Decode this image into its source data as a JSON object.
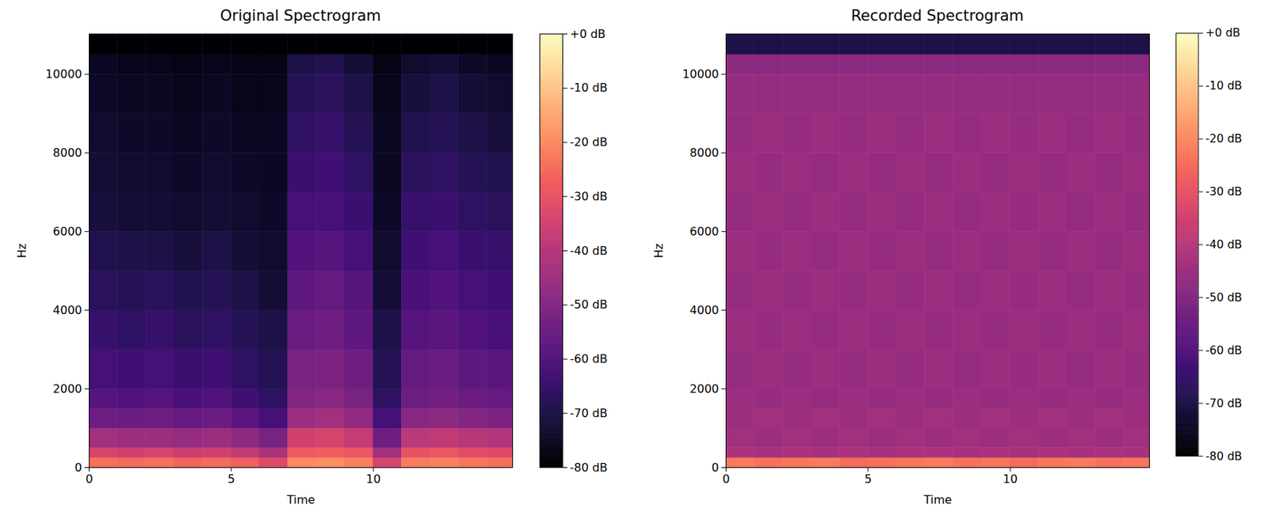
{
  "chart_data": [
    {
      "type": "heatmap",
      "title": "Original Spectrogram",
      "x_label": "Time",
      "y_label": "Hz",
      "color": "magma",
      "xlim": [
        0,
        14.9
      ],
      "ylim": [
        0,
        11025
      ],
      "xticks": [
        0,
        5,
        10
      ],
      "yticks": [
        0,
        2000,
        4000,
        6000,
        8000,
        10000
      ],
      "x_edges": [
        0,
        1,
        2,
        3,
        4,
        5,
        6,
        7,
        8,
        9,
        10,
        11,
        12,
        13,
        14,
        14.9
      ],
      "y_edges": [
        0,
        250,
        500,
        1000,
        1500,
        2000,
        3000,
        4000,
        5000,
        6000,
        7000,
        8000,
        9000,
        10000,
        10500,
        11025
      ],
      "cells": [
        [
          -24,
          -25,
          -24,
          -26,
          -25,
          -27,
          -32,
          -20,
          -19,
          -21,
          -34,
          -22,
          -21,
          -23,
          -24
        ],
        [
          -34,
          -35,
          -34,
          -36,
          -35,
          -38,
          -42,
          -28,
          -27,
          -29,
          -44,
          -30,
          -29,
          -31,
          -32
        ],
        [
          -44,
          -45,
          -45,
          -46,
          -45,
          -48,
          -52,
          -35,
          -34,
          -37,
          -54,
          -39,
          -38,
          -40,
          -41
        ],
        [
          -54,
          -55,
          -54,
          -56,
          -55,
          -58,
          -62,
          -45,
          -44,
          -47,
          -62,
          -49,
          -48,
          -50,
          -51
        ],
        [
          -59,
          -60,
          -59,
          -61,
          -60,
          -63,
          -66,
          -50,
          -49,
          -52,
          -66,
          -54,
          -53,
          -55,
          -56
        ],
        [
          -62,
          -63,
          -62,
          -64,
          -63,
          -66,
          -68,
          -52,
          -51,
          -54,
          -68,
          -56,
          -55,
          -57,
          -58
        ],
        [
          -65,
          -66,
          -65,
          -67,
          -66,
          -68,
          -70,
          -55,
          -54,
          -57,
          -70,
          -59,
          -58,
          -60,
          -61
        ],
        [
          -67,
          -68,
          -67,
          -69,
          -68,
          -70,
          -72,
          -57,
          -56,
          -59,
          -72,
          -61,
          -60,
          -62,
          -63
        ],
        [
          -69,
          -70,
          -70,
          -71,
          -70,
          -72,
          -73,
          -60,
          -59,
          -62,
          -73,
          -63,
          -62,
          -64,
          -65
        ],
        [
          -71,
          -72,
          -72,
          -73,
          -72,
          -73,
          -74,
          -62,
          -61,
          -64,
          -74,
          -65,
          -64,
          -66,
          -67
        ],
        [
          -72,
          -73,
          -73,
          -74,
          -73,
          -74,
          -75,
          -64,
          -63,
          -66,
          -75,
          -67,
          -66,
          -68,
          -69
        ],
        [
          -73,
          -74,
          -74,
          -75,
          -74,
          -75,
          -75,
          -66,
          -65,
          -68,
          -75,
          -69,
          -68,
          -70,
          -71
        ],
        [
          -74,
          -75,
          -75,
          -76,
          -75,
          -76,
          -76,
          -68,
          -67,
          -70,
          -76,
          -71,
          -70,
          -72,
          -73
        ],
        [
          -75,
          -76,
          -76,
          -77,
          -76,
          -77,
          -77,
          -70,
          -69,
          -72,
          -77,
          -73,
          -72,
          -74,
          -75
        ],
        [
          -80,
          -80,
          -80,
          -80,
          -80,
          -80,
          -80,
          -80,
          -80,
          -80,
          -80,
          -80,
          -80,
          -80,
          -80
        ]
      ],
      "colorbar": {
        "range": [
          -80,
          0
        ],
        "ticks": [
          {
            "value": 0,
            "label": "+0 dB"
          },
          {
            "value": -10,
            "label": "-10 dB"
          },
          {
            "value": -20,
            "label": "-20 dB"
          },
          {
            "value": -30,
            "label": "-30 dB"
          },
          {
            "value": -40,
            "label": "-40 dB"
          },
          {
            "value": -50,
            "label": "-50 dB"
          },
          {
            "value": -60,
            "label": "-60 dB"
          },
          {
            "value": -70,
            "label": "-70 dB"
          },
          {
            "value": -80,
            "label": "-80 dB"
          }
        ]
      }
    },
    {
      "type": "heatmap",
      "title": "Recorded Spectrogram",
      "x_label": "Time",
      "y_label": "Hz",
      "color": "magma",
      "xlim": [
        0,
        14.9
      ],
      "ylim": [
        0,
        11025
      ],
      "xticks": [
        0,
        5,
        10
      ],
      "yticks": [
        0,
        2000,
        4000,
        6000,
        8000,
        10000
      ],
      "x_edges": [
        0,
        1,
        2,
        3,
        4,
        5,
        6,
        7,
        8,
        9,
        10,
        11,
        12,
        13,
        14,
        14.9
      ],
      "y_edges": [
        0,
        250,
        500,
        1000,
        1500,
        2000,
        3000,
        4000,
        5000,
        6000,
        7000,
        8000,
        9000,
        10000,
        10500,
        11025
      ],
      "cells": [
        [
          -22,
          -24,
          -23,
          -22,
          -25,
          -24,
          -23,
          -22,
          -24,
          -23,
          -25,
          -23,
          -22,
          -24,
          -23
        ],
        [
          -42,
          -43,
          -42,
          -43,
          -42,
          -43,
          -42,
          -42,
          -43,
          -42,
          -43,
          -42,
          -43,
          -42,
          -43
        ],
        [
          -44,
          -45,
          -44,
          -45,
          -44,
          -45,
          -44,
          -45,
          -44,
          -45,
          -44,
          -45,
          -44,
          -45,
          -44
        ],
        [
          -45,
          -44,
          -45,
          -44,
          -45,
          -44,
          -45,
          -44,
          -45,
          -44,
          -45,
          -44,
          -45,
          -44,
          -45
        ],
        [
          -45,
          -46,
          -45,
          -46,
          -45,
          -46,
          -45,
          -46,
          -45,
          -46,
          -45,
          -46,
          -45,
          -46,
          -45
        ],
        [
          -46,
          -45,
          -46,
          -45,
          -46,
          -45,
          -46,
          -45,
          -46,
          -45,
          -46,
          -45,
          -46,
          -45,
          -46
        ],
        [
          -45,
          -46,
          -45,
          -46,
          -45,
          -46,
          -45,
          -46,
          -45,
          -46,
          -45,
          -46,
          -45,
          -46,
          -45
        ],
        [
          -46,
          -45,
          -46,
          -45,
          -46,
          -45,
          -46,
          -45,
          -46,
          -45,
          -46,
          -45,
          -46,
          -45,
          -46
        ],
        [
          -45,
          -46,
          -45,
          -46,
          -45,
          -46,
          -45,
          -46,
          -45,
          -46,
          -45,
          -46,
          -45,
          -46,
          -45
        ],
        [
          -46,
          -45,
          -46,
          -45,
          -46,
          -45,
          -46,
          -45,
          -46,
          -45,
          -46,
          -45,
          -46,
          -45,
          -46
        ],
        [
          -45,
          -46,
          -45,
          -46,
          -45,
          -46,
          -45,
          -46,
          -45,
          -46,
          -45,
          -46,
          -45,
          -46,
          -45
        ],
        [
          -46,
          -45,
          -46,
          -45,
          -46,
          -45,
          -46,
          -45,
          -46,
          -45,
          -46,
          -45,
          -46,
          -45,
          -46
        ],
        [
          -46,
          -46,
          -46,
          -46,
          -46,
          -46,
          -46,
          -46,
          -46,
          -46,
          -46,
          -46,
          -46,
          -46,
          -46
        ],
        [
          -48,
          -48,
          -48,
          -48,
          -48,
          -48,
          -48,
          -48,
          -48,
          -48,
          -48,
          -48,
          -48,
          -48,
          -48
        ],
        [
          -70,
          -70,
          -70,
          -70,
          -70,
          -70,
          -70,
          -70,
          -70,
          -70,
          -70,
          -70,
          -70,
          -70,
          -70
        ]
      ],
      "colorbar": {
        "range": [
          -80,
          0
        ],
        "ticks": [
          {
            "value": 0,
            "label": "+0 dB"
          },
          {
            "value": -10,
            "label": "-10 dB"
          },
          {
            "value": -20,
            "label": "-20 dB"
          },
          {
            "value": -30,
            "label": "-30 dB"
          },
          {
            "value": -40,
            "label": "-40 dB"
          },
          {
            "value": -50,
            "label": "-50 dB"
          },
          {
            "value": -60,
            "label": "-60 dB"
          },
          {
            "value": -70,
            "label": "-70 dB"
          },
          {
            "value": -80,
            "label": "-80 dB"
          }
        ]
      }
    }
  ]
}
